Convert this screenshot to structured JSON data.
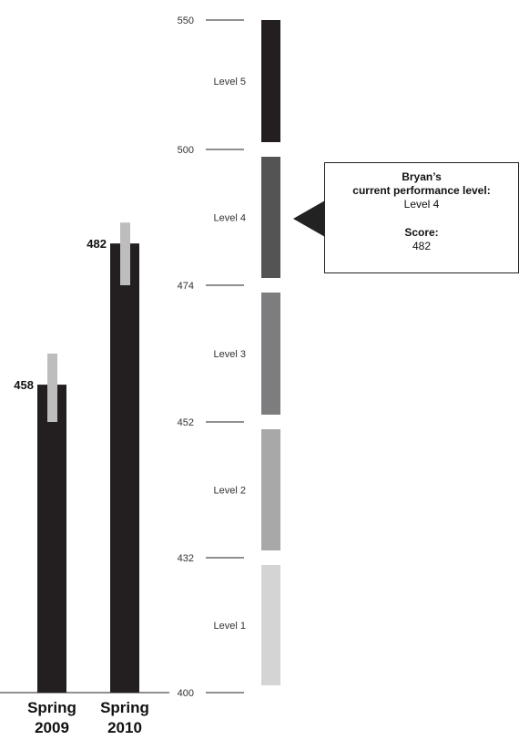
{
  "chart_data": {
    "type": "bar",
    "categories": [
      {
        "line1": "Spring",
        "line2": "2009"
      },
      {
        "line1": "Spring",
        "line2": "2010"
      }
    ],
    "values": [
      458,
      482
    ],
    "error_ranges": [
      [
        452,
        463
      ],
      [
        474,
        486
      ]
    ],
    "value_labels": [
      "458",
      "482"
    ],
    "ylim": [
      400,
      550
    ],
    "ticks": [
      "550",
      "500",
      "474",
      "452",
      "432",
      "400"
    ],
    "performance_levels": [
      {
        "label": "Level 1",
        "range": [
          400,
          432
        ],
        "color": "#d4d4d4"
      },
      {
        "label": "Level 2",
        "range": [
          432,
          452
        ],
        "color": "#a8a8a8"
      },
      {
        "label": "Level 3",
        "range": [
          452,
          474
        ],
        "color": "#7d7d7f"
      },
      {
        "label": "Level 4",
        "range": [
          474,
          500
        ],
        "color": "#545455"
      },
      {
        "label": "Level 5",
        "range": [
          500,
          550
        ],
        "color": "#231f20"
      }
    ],
    "colors": {
      "bar": "#231f20",
      "error_band": "#bdbdbd"
    }
  },
  "callout": {
    "line1": "Bryan’s",
    "line2": "current performance level:",
    "line3": "Level 4",
    "line4": "Score:",
    "line5": "482"
  }
}
